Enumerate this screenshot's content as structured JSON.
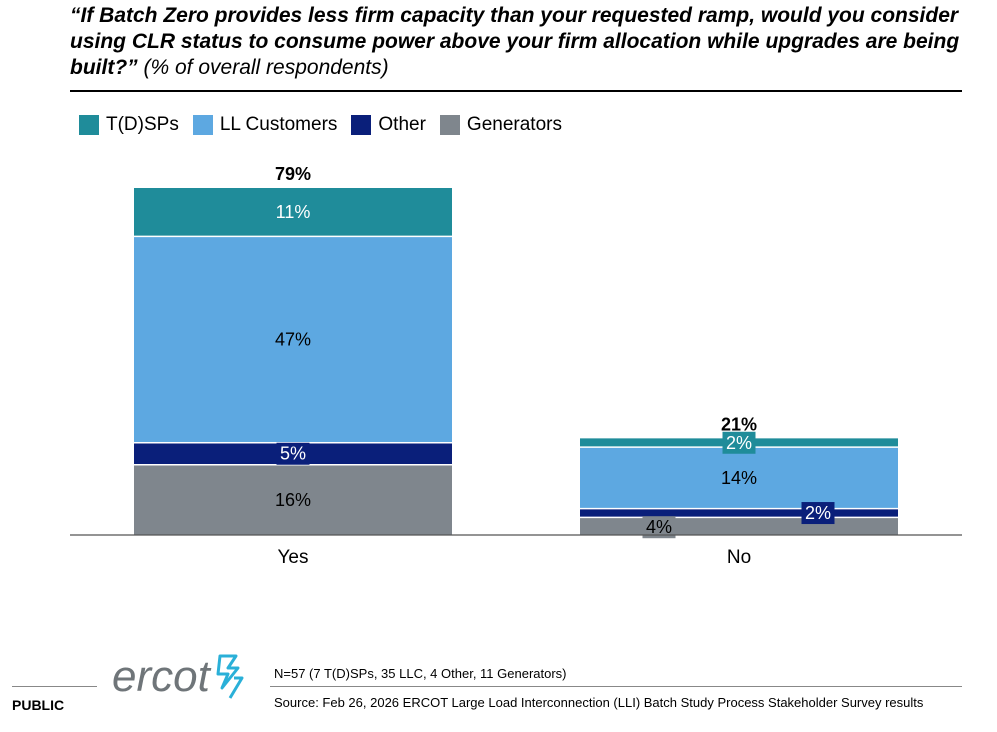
{
  "title": {
    "main": "“If Batch Zero provides less firm capacity than your requested ramp, would you consider using CLR status to consume power above your firm allocation while upgrades are being built?”",
    "subtitle": "(% of overall respondents)"
  },
  "colors": {
    "tdsp": "#1f8c9a",
    "ll": "#5da8e1",
    "other": "#0a1f7a",
    "gen": "#7f868d"
  },
  "chart_data": {
    "type": "bar",
    "stacked": true,
    "title": "If Batch Zero provides less firm capacity than your requested ramp, would you consider using CLR status to consume power above your firm allocation while upgrades are being built?",
    "ylabel": "% of overall respondents",
    "categories": [
      "Yes",
      "No"
    ],
    "totals": [
      "79%",
      "21%"
    ],
    "series": [
      {
        "name": "Generators",
        "key": "gen",
        "values": [
          16,
          4
        ],
        "labels": [
          "16%",
          "4%"
        ]
      },
      {
        "name": "Other",
        "key": "other",
        "values": [
          5,
          2
        ],
        "labels": [
          "5%",
          "2%"
        ]
      },
      {
        "name": "LL Customers",
        "key": "ll",
        "values": [
          47,
          14
        ],
        "labels": [
          "47%",
          "14%"
        ]
      },
      {
        "name": "T(D)SPs",
        "key": "tdsp",
        "values": [
          11,
          2
        ],
        "labels": [
          "11%",
          "2%"
        ]
      }
    ],
    "legend": [
      {
        "name": "T(D)SPs",
        "key": "tdsp"
      },
      {
        "name": "LL Customers",
        "key": "ll"
      },
      {
        "name": "Other",
        "key": "other"
      },
      {
        "name": "Generators",
        "key": "gen"
      }
    ],
    "ylim": [
      0,
      79
    ]
  },
  "footer": {
    "public": "PUBLIC",
    "logo": "ercot",
    "note": "N=57 (7 T(D)SPs, 35 LLC, 4 Other, 11 Generators)",
    "source": "Source: Feb 26, 2026 ERCOT Large Load Interconnection (LLI) Batch Study Process Stakeholder Survey results"
  }
}
